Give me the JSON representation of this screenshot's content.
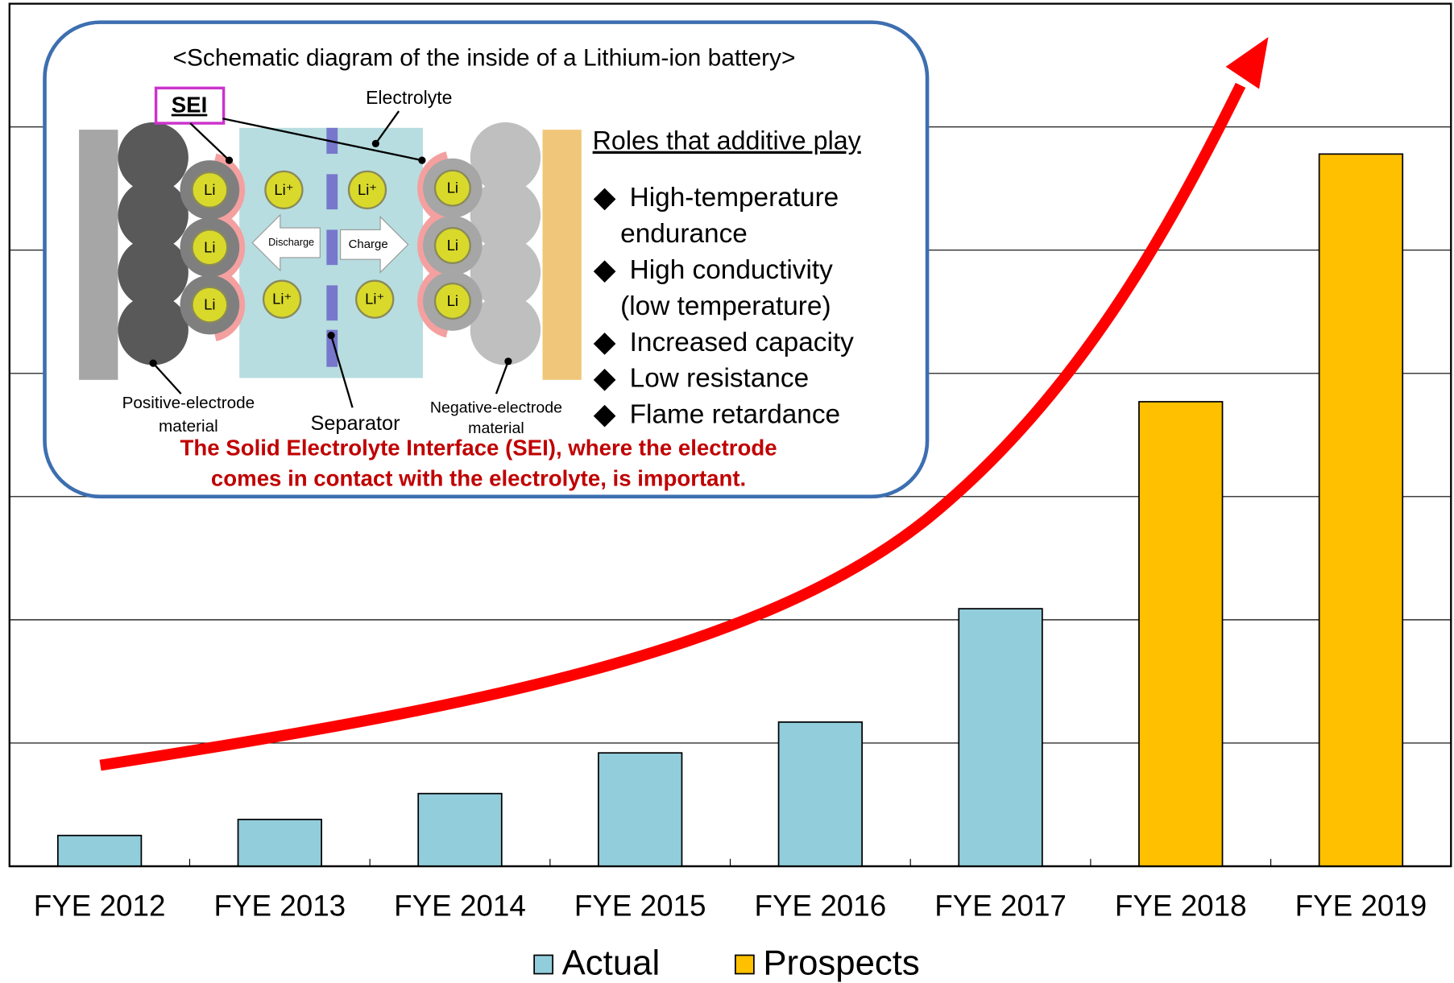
{
  "chart_data": {
    "type": "bar",
    "categories": [
      "FYE 2012",
      "FYE 2013",
      "FYE 2014",
      "FYE 2015",
      "FYE 2016",
      "FYE 2017",
      "FYE 2018",
      "FYE 2019"
    ],
    "series": [
      {
        "name": "Actual",
        "color": "#92cddc",
        "values": [
          0.25,
          0.38,
          0.59,
          0.92,
          1.17,
          2.09,
          null,
          null
        ]
      },
      {
        "name": "Prospects",
        "color": "#ffc000",
        "values": [
          null,
          null,
          null,
          null,
          null,
          null,
          3.77,
          5.78
        ]
      }
    ],
    "ylim": [
      0,
      7
    ],
    "yticks": [
      0,
      1,
      2,
      3,
      4,
      5,
      6,
      7
    ],
    "grid": true,
    "legend": "bottom"
  },
  "diagram": {
    "title": "<Schematic diagram of the inside of a Lithium-ion battery>",
    "sei": "SEI",
    "electrolyte": "Electrolyte",
    "li": [
      "Li",
      "Li",
      "Li",
      "Li",
      "Li",
      "Li"
    ],
    "li_ion": [
      "Li⁺",
      "Li⁺",
      "Li⁺",
      "Li⁺"
    ],
    "discharge": "Discharge",
    "charge": "Charge",
    "positive": [
      "Positive-electrode",
      "material"
    ],
    "separator": "Separator",
    "negative": [
      "Negative-electrode",
      "material"
    ],
    "roles_title": "Roles that additive play",
    "roles": [
      [
        "High-temperature",
        "endurance"
      ],
      [
        "High conductivity",
        "(low temperature)"
      ],
      [
        "Increased capacity"
      ],
      [
        "Low resistance"
      ],
      [
        "Flame retardance"
      ]
    ],
    "caption": [
      "The Solid Electrolyte Interface (SEI), where the electrode",
      "comes in contact with the electrolyte, is important."
    ]
  }
}
